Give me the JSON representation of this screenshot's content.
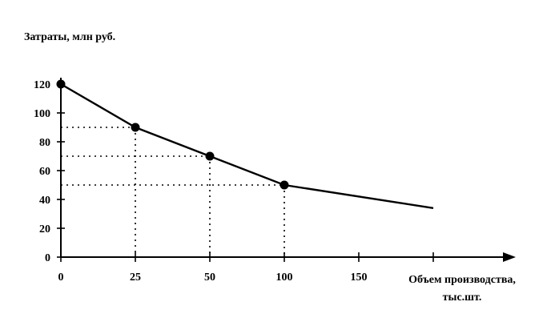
{
  "chart_data": {
    "type": "line",
    "ylabel": "Затраты, млн руб.",
    "xlabel_lines": [
      "Объем производства,",
      "тыс.шт."
    ],
    "x_ticks": [
      {
        "label": "0",
        "pos": 0
      },
      {
        "label": "25",
        "pos": 1
      },
      {
        "label": "50",
        "pos": 2
      },
      {
        "label": "100",
        "pos": 3
      },
      {
        "label": "150",
        "pos": 4
      },
      {
        "label": "",
        "pos": 5
      }
    ],
    "y_ticks": [
      0,
      20,
      40,
      60,
      80,
      100,
      120
    ],
    "ylim": [
      0,
      120
    ],
    "points": [
      {
        "x": 0,
        "pos": 0,
        "y": 120
      },
      {
        "x": 25,
        "pos": 1,
        "y": 90
      },
      {
        "x": 50,
        "pos": 2,
        "y": 70
      },
      {
        "x": 100,
        "pos": 3,
        "y": 50
      }
    ],
    "tail_end": {
      "pos": 5,
      "y": 34
    },
    "guide_levels": [
      90,
      70,
      50
    ],
    "colors": {
      "line": "#000000",
      "axis": "#000000"
    }
  }
}
